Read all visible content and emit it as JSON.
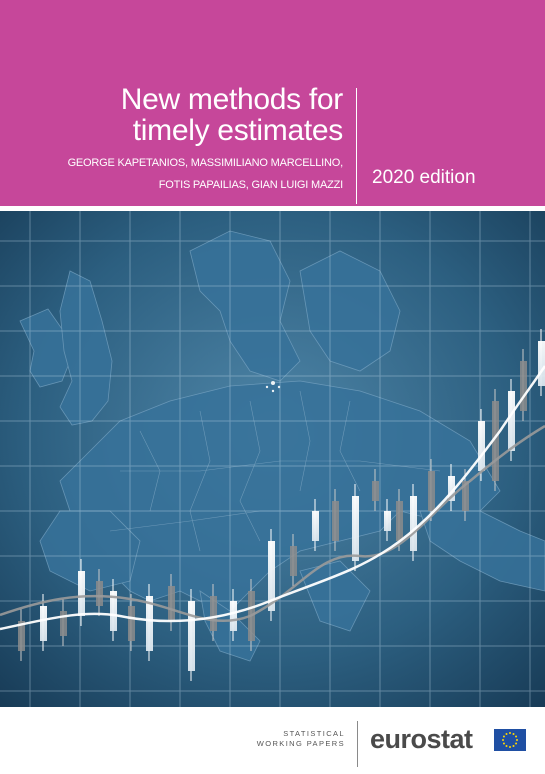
{
  "cover": {
    "title_line1": "New methods for",
    "title_line2": "timely estimates",
    "authors_line1": "GEORGE KAPETANIOS, MASSIMILIANO MARCELLINO,",
    "authors_line2": "FOTIS PAPAILIAS, GIAN LUIGI MAZZI",
    "edition": "2020 edition",
    "series_line1": "STATISTICAL",
    "series_line2": "WORKING PAPERS",
    "brand": "eurostat",
    "colors": {
      "header": "#c6479a",
      "map_background": "#2b5a7a",
      "land": "#2f6687",
      "brand_text": "#4a4a4a",
      "eu_flag_blue": "#1f4fa3",
      "eu_flag_stars": "#ffd700"
    },
    "icons": {
      "flag": "eu-flag-icon",
      "map": "europe-map-illustration",
      "chart": "candlestick-chart-illustration"
    }
  }
}
